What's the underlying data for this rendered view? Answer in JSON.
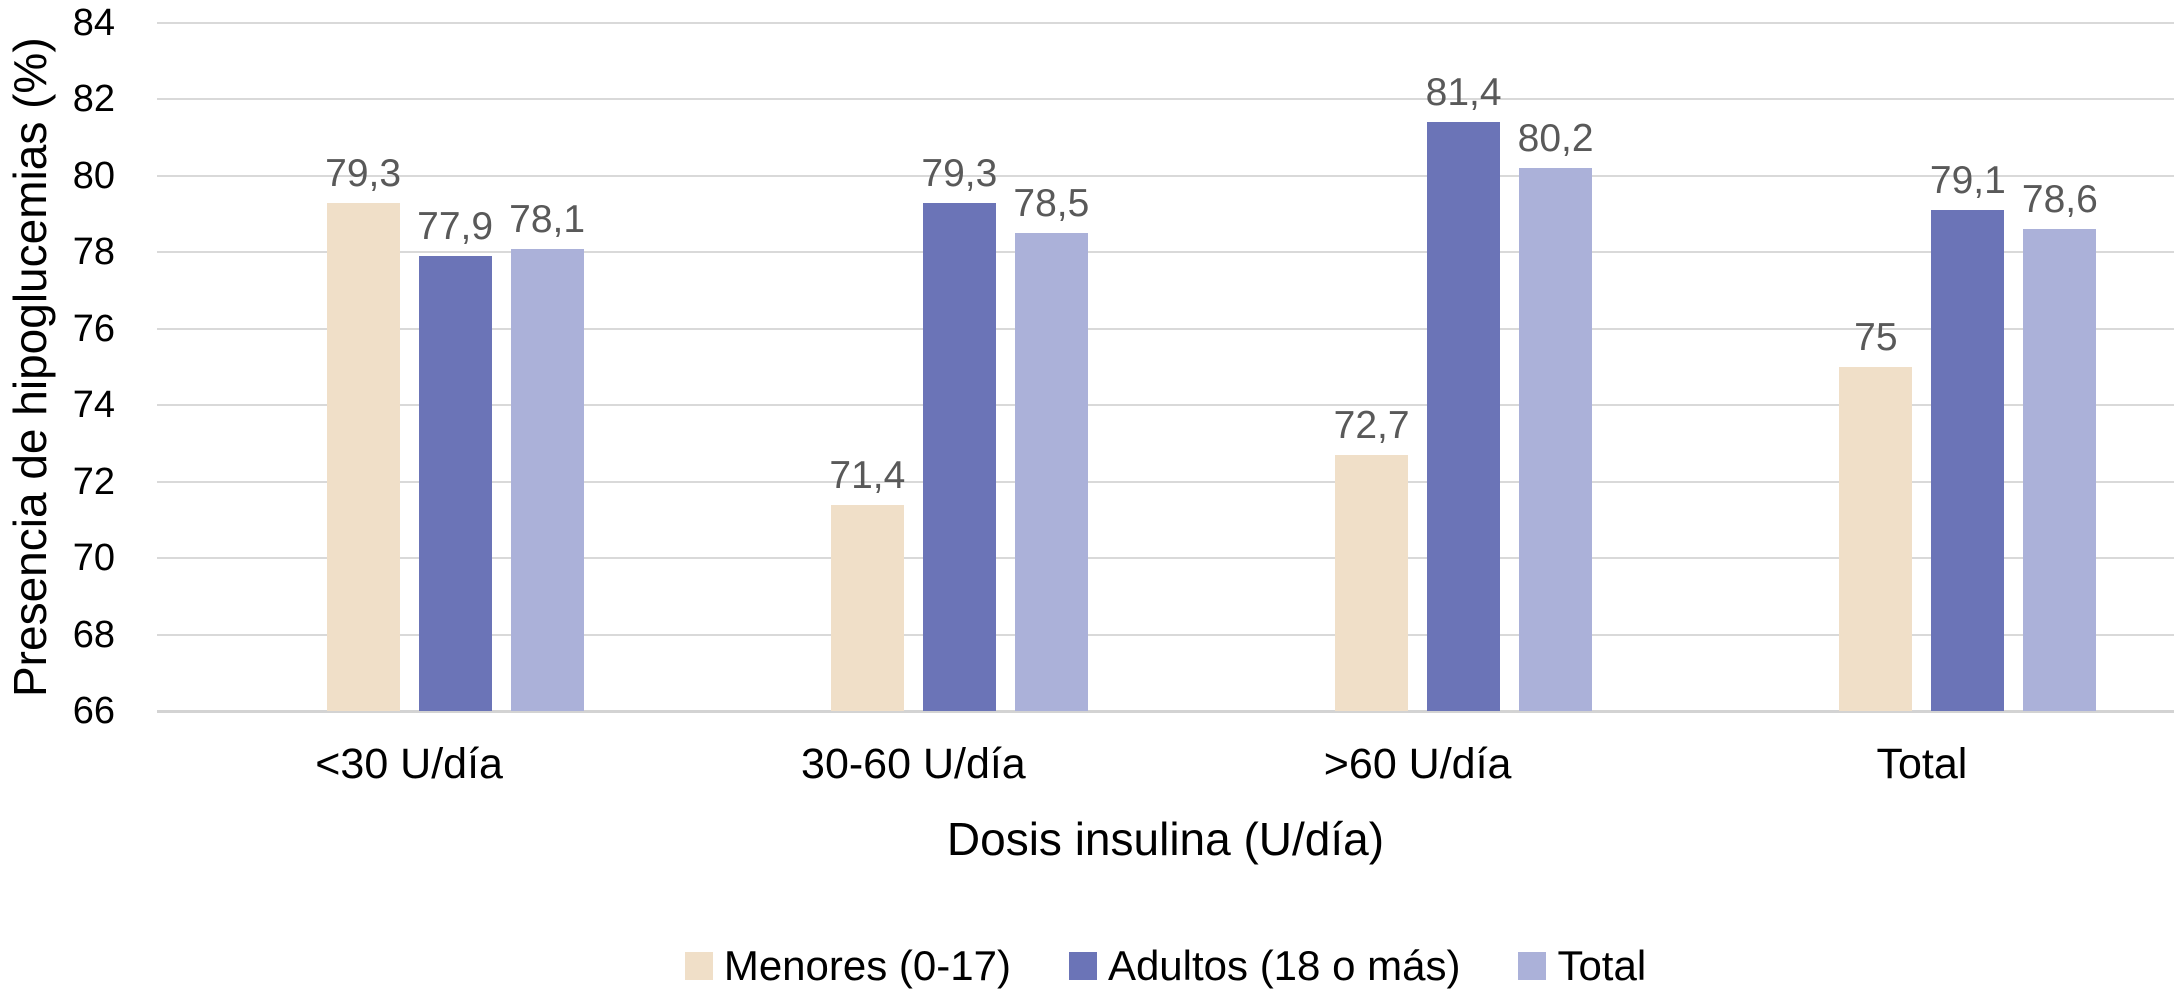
{
  "chart_data": {
    "type": "bar",
    "title": "",
    "xlabel": "Dosis insulina (U/día)",
    "ylabel": "Presencia de hipoglucemias (%)",
    "categories": [
      "<30 U/día",
      "30-60 U/día",
      ">60 U/día",
      "Total"
    ],
    "series": [
      {
        "name": "Menores (0-17)",
        "color": "#F0DFC8",
        "values": [
          79.3,
          71.4,
          72.7,
          75
        ],
        "labels": [
          "79,3",
          "71,4",
          "72,7",
          "75"
        ]
      },
      {
        "name": "Adultos (18 o más)",
        "color": "#6B74B7",
        "values": [
          77.9,
          79.3,
          81.4,
          79.1
        ],
        "labels": [
          "77,9",
          "79,3",
          "81,4",
          "79,1"
        ]
      },
      {
        "name": "Total",
        "color": "#ABB1D9",
        "values": [
          78.1,
          78.5,
          80.2,
          78.6
        ],
        "labels": [
          "78,1",
          "78,5",
          "80,2",
          "78,6"
        ]
      }
    ],
    "y_ticks": [
      66,
      68,
      70,
      72,
      74,
      76,
      78,
      80,
      82,
      84
    ],
    "ylim": [
      66,
      84
    ],
    "grid": true,
    "legend_position": "bottom",
    "decimal_separator": ","
  },
  "colors": {
    "gridline": "#D9D9D9",
    "axis_line": "#D3D3D3",
    "data_label": "#595959",
    "tick_label": "#000000"
  }
}
